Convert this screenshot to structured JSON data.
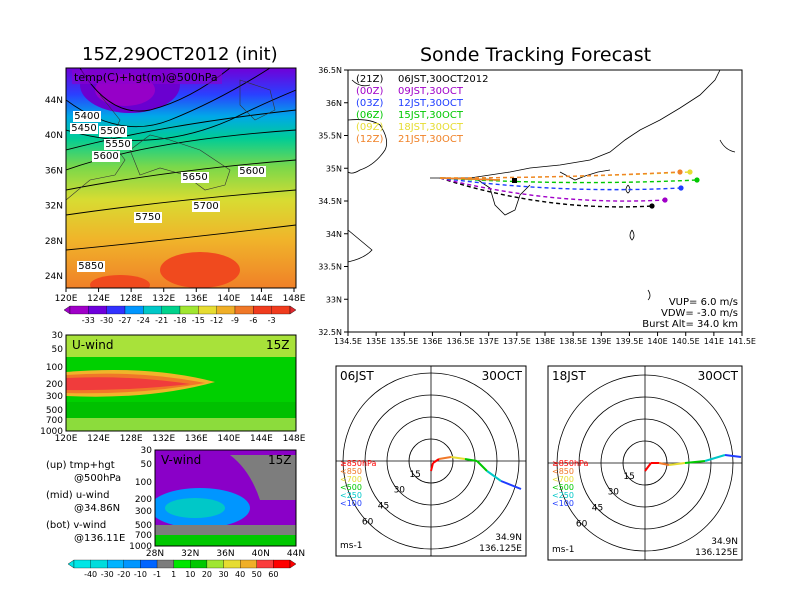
{
  "titles": {
    "left": "15Z,29OCT2012 (init)",
    "right": "Sonde Tracking Forecast"
  },
  "colors": {
    "temp_scale": [
      "#a000c8",
      "#6e00dc",
      "#3232ff",
      "#0096ff",
      "#00c8c8",
      "#00d28c",
      "#a0e632",
      "#e6dc32",
      "#f0af28",
      "#f07828",
      "#f03c1e"
    ],
    "wind_scale": [
      "#00dcdc",
      "#00b4ff",
      "#0096ff",
      "#0064ff",
      "#7d7d7d",
      "#00e600",
      "#00c800",
      "#a0e632",
      "#e6dc32",
      "#f0af28",
      "#fa3c3c",
      "#ff0000"
    ],
    "traj": {
      "21Z": "#000000",
      "00Z": "#a000c8",
      "03Z": "#1e3cff",
      "06Z": "#00c800",
      "09Z": "#e6dc32",
      "12Z": "#f08228"
    }
  },
  "temp_map": {
    "label": "temp(C)+hgt(m)@500hPa",
    "lon_ticks": [
      "120E",
      "124E",
      "128E",
      "132E",
      "136E",
      "140E",
      "144E",
      "148E"
    ],
    "lat_ticks": [
      "44N",
      "40N",
      "36N",
      "32N",
      "28N",
      "24N"
    ],
    "contours": [
      "5400",
      "5450",
      "5500",
      "5550",
      "5600",
      "5650",
      "5600",
      "5700",
      "5750",
      "5850"
    ],
    "colorbar_labels": [
      "-33",
      "-30",
      "-27",
      "-24",
      "-21",
      "-18",
      "-15",
      "-12",
      "-9",
      "-6",
      "-3"
    ]
  },
  "uwind": {
    "label": "U-wind",
    "time": "15Z",
    "p_ticks": [
      "30",
      "50",
      "100",
      "200",
      "300",
      "500",
      "700",
      "1000"
    ],
    "lon_ticks": [
      "120E",
      "124E",
      "128E",
      "132E",
      "136E",
      "140E",
      "144E",
      "148E"
    ]
  },
  "vwind": {
    "label": "V-wind",
    "time": "15Z",
    "p_ticks": [
      "30",
      "50",
      "100",
      "200",
      "300",
      "500",
      "700",
      "1000"
    ],
    "lat_ticks": [
      "28N",
      "32N",
      "36N",
      "40N",
      "44N"
    ],
    "colorbar_labels": [
      "-40",
      "-30",
      "-20",
      "-10",
      "-1",
      "1",
      "10",
      "20",
      "30",
      "40",
      "50",
      "60"
    ]
  },
  "legend_notes": [
    {
      "a": "(up) tmp+hgt",
      "b": "@500hPa"
    },
    {
      "a": "(mid) u-wind",
      "b": "@34.86N"
    },
    {
      "a": "(bot) v-wind",
      "b": "@136.11E"
    }
  ],
  "track_map": {
    "lon_ticks": [
      "134.5E",
      "135E",
      "135.5E",
      "136E",
      "136.5E",
      "137E",
      "137.5E",
      "138E",
      "138.5E",
      "139E",
      "139.5E",
      "140E",
      "140.5E",
      "141E",
      "141.5E"
    ],
    "lat_ticks": [
      "36.5N",
      "36N",
      "35.5N",
      "35N",
      "34.5N",
      "34N",
      "33.5N",
      "33N",
      "32.5N"
    ],
    "legend": [
      {
        "code": "(21Z)",
        "text": "06JST,30OCT2012",
        "key": "21Z"
      },
      {
        "code": "(00Z)",
        "text": "09JST,30OCT",
        "key": "00Z"
      },
      {
        "code": "(03Z)",
        "text": "12JST,30OCT",
        "key": "03Z"
      },
      {
        "code": "(06Z)",
        "text": "15JST,30OCT",
        "key": "06Z"
      },
      {
        "code": "(09Z)",
        "text": "18JST,30OCT",
        "key": "09Z"
      },
      {
        "code": "(12Z)",
        "text": "21JST,30OCT",
        "key": "12Z"
      }
    ],
    "params": [
      "VUP= 6.0 m/s",
      "VDW= -3.0 m/s",
      "Burst Alt= 34.0 km"
    ]
  },
  "hodographs": [
    {
      "time": "06JST",
      "date": "30OCT",
      "lat": "34.9N",
      "lon": "136.125E",
      "unit": "ms-1",
      "rings": [
        "15",
        "30",
        "45",
        "60"
      ],
      "levels": [
        {
          "t": "≥850hPa",
          "c": "#ff0000"
        },
        {
          "t": "<850",
          "c": "#f07828"
        },
        {
          "t": "<700",
          "c": "#e6dc32"
        },
        {
          "t": "<500",
          "c": "#00c800"
        },
        {
          "t": "<250",
          "c": "#00c8c8"
        },
        {
          "t": "<100",
          "c": "#1e3cff"
        }
      ]
    },
    {
      "time": "18JST",
      "date": "30OCT",
      "lat": "34.9N",
      "lon": "136.125E",
      "unit": "ms-1",
      "rings": [
        "15",
        "30",
        "45",
        "60"
      ],
      "levels": [
        {
          "t": "≥850hPa",
          "c": "#ff0000"
        },
        {
          "t": "<850",
          "c": "#f07828"
        },
        {
          "t": "<700",
          "c": "#e6dc32"
        },
        {
          "t": "<500",
          "c": "#00c800"
        },
        {
          "t": "<250",
          "c": "#00c8c8"
        },
        {
          "t": "<100",
          "c": "#1e3cff"
        }
      ]
    }
  ]
}
